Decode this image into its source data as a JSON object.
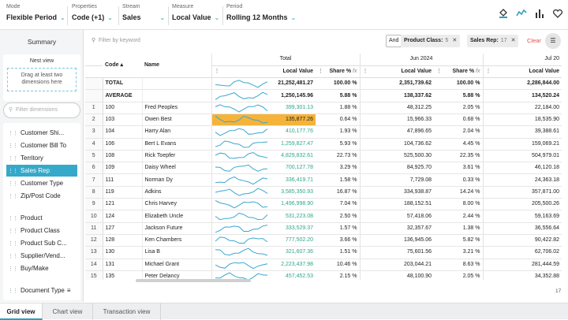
{
  "toolbar": {
    "mode": {
      "label": "Mode",
      "value": "Flexible Period"
    },
    "properties": {
      "label": "Properties",
      "value": "Code  (+1)"
    },
    "stream": {
      "label": "Stream",
      "value": "Sales"
    },
    "measure": {
      "label": "Measure",
      "value": "Local Value"
    },
    "period": {
      "label": "Period",
      "value": "Rolling 12 Months"
    },
    "icons": [
      "paint-bucket-icon",
      "sparkline-icon",
      "bar-chart-icon",
      "heart-icon"
    ]
  },
  "sidebar": {
    "summary": "Summary",
    "nest_title": "Nest view",
    "drop_hint": "Drag at least two dimensions here",
    "filter_placeholder": "Filter dimensions",
    "dimensions": [
      "Customer Shi...",
      "Customer Bill To",
      "Territory",
      "Sales Rep",
      "Customer Type",
      "Zip/Post Code",
      "Product",
      "Product Class",
      "Product Sub C...",
      "Supplier/Vend...",
      "Buy/Make",
      "Document Type"
    ],
    "active": "Sales Rep"
  },
  "filters": {
    "keyword_placeholder": "Filter by keyword",
    "and_label": "And",
    "chips": [
      {
        "label": "Product Class:",
        "count": "5"
      },
      {
        "label": "Sales Rep:",
        "count": "17"
      }
    ],
    "clear_label": "Clear"
  },
  "grid": {
    "group_headers": {
      "total": "Total",
      "jun": "Jun 2024",
      "jul": "Jul 20"
    },
    "col_headers": {
      "code": "Code",
      "name": "Name",
      "local_value": "Local Value",
      "share": "Share %"
    },
    "summary_rows": [
      {
        "label": "TOTAL",
        "total_lv": "21,252,481.27",
        "total_share": "100.00 %",
        "jun_lv": "2,351,739.62",
        "jun_share": "100.00 %",
        "jul_lv": "2,286,844.00"
      },
      {
        "label": "AVERAGE",
        "total_lv": "1,250,145.96",
        "total_share": "5.88 %",
        "jun_lv": "138,337.62",
        "jun_share": "5.88 %",
        "jul_lv": "134,520.24"
      }
    ],
    "rows": [
      {
        "n": "1",
        "code": "100",
        "name": "Fred Peoples",
        "lv": "399,301.13",
        "share": "1.88 %",
        "jun_lv": "48,312.25",
        "jun_share": "2.05 %",
        "jul_lv": "22,184.00"
      },
      {
        "n": "2",
        "code": "103",
        "name": "Owen Best",
        "lv": "135,877.26",
        "share": "0.64 %",
        "jun_lv": "15,966.33",
        "jun_share": "0.68 %",
        "jul_lv": "18,535.90"
      },
      {
        "n": "3",
        "code": "104",
        "name": "Harry Alan",
        "lv": "410,177.76",
        "share": "1.93 %",
        "jun_lv": "47,896.65",
        "jun_share": "2.04 %",
        "jul_lv": "39,388.61"
      },
      {
        "n": "4",
        "code": "106",
        "name": "Bert L Evans",
        "lv": "1,259,827.47",
        "share": "5.93 %",
        "jun_lv": "104,736.62",
        "jun_share": "4.45 %",
        "jul_lv": "159,069.21"
      },
      {
        "n": "5",
        "code": "108",
        "name": "Rick Toepfer",
        "lv": "4,829,832.61",
        "share": "22.73 %",
        "jun_lv": "525,500.30",
        "jun_share": "22.35 %",
        "jul_lv": "504,979.01"
      },
      {
        "n": "6",
        "code": "109",
        "name": "Daisy Wheel",
        "lv": "700,127.78",
        "share": "3.29 %",
        "jun_lv": "84,925.70",
        "jun_share": "3.61 %",
        "jul_lv": "46,120.18"
      },
      {
        "n": "7",
        "code": "111",
        "name": "Norman Dy",
        "lv": "336,419.71",
        "share": "1.58 %",
        "jun_lv": "7,729.08",
        "jun_share": "0.33 %",
        "jul_lv": "24,363.18"
      },
      {
        "n": "8",
        "code": "119",
        "name": "Adkins",
        "lv": "3,585,350.93",
        "share": "16.87 %",
        "jun_lv": "334,938.87",
        "jun_share": "14.24 %",
        "jul_lv": "357,871.00"
      },
      {
        "n": "9",
        "code": "121",
        "name": "Chris Harvey",
        "lv": "1,496,998.90",
        "share": "7.04 %",
        "jun_lv": "188,152.51",
        "jun_share": "8.00 %",
        "jul_lv": "205,500.26"
      },
      {
        "n": "10",
        "code": "124",
        "name": "Elizabeth Uncle",
        "lv": "531,223.08",
        "share": "2.50 %",
        "jun_lv": "57,418.06",
        "jun_share": "2.44 %",
        "jul_lv": "59,163.69"
      },
      {
        "n": "11",
        "code": "127",
        "name": "Jackson Future",
        "lv": "333,529.37",
        "share": "1.57 %",
        "jun_lv": "32,357.67",
        "jun_share": "1.38 %",
        "jul_lv": "36,556.64"
      },
      {
        "n": "12",
        "code": "128",
        "name": "Ken Chambers",
        "lv": "777,502.20",
        "share": "3.66 %",
        "jun_lv": "136,945.06",
        "jun_share": "5.82 %",
        "jul_lv": "90,422.82"
      },
      {
        "n": "13",
        "code": "130",
        "name": "Lisa B",
        "lv": "321,607.36",
        "share": "1.51 %",
        "jun_lv": "75,601.56",
        "jun_share": "3.21 %",
        "jul_lv": "62,706.02"
      },
      {
        "n": "14",
        "code": "131",
        "name": "Michael Grant",
        "lv": "2,223,437.98",
        "share": "10.46 %",
        "jun_lv": "203,044.21",
        "jun_share": "8.63 %",
        "jul_lv": "281,444.59"
      },
      {
        "n": "15",
        "code": "135",
        "name": "Peter Delancy",
        "lv": "457,452.53",
        "share": "2.15 %",
        "jun_lv": "48,100.90",
        "jun_share": "2.05 %",
        "jul_lv": "34,352.88"
      }
    ],
    "highlight_row": "2",
    "row_count": "17",
    "sparkline_color": "#3aa7cf",
    "highlight_color": "#f5b33a"
  },
  "tabs": [
    "Grid view",
    "Chart view",
    "Transaction view"
  ],
  "active_tab": "Grid view"
}
